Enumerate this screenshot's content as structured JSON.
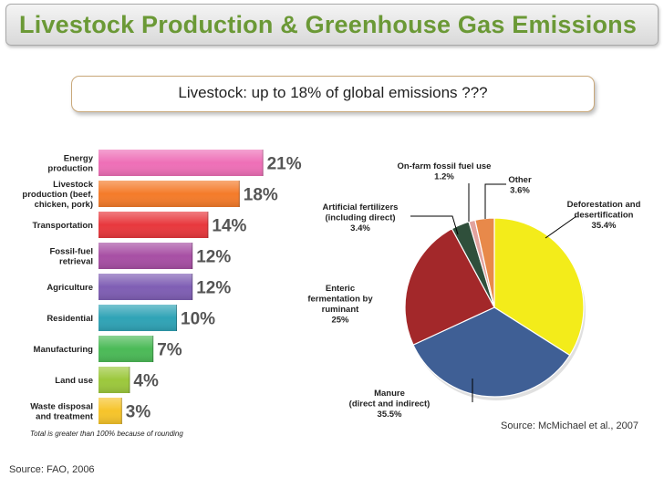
{
  "slide": {
    "title": "Livestock Production & Greenhouse Gas Emissions",
    "subtitle": "Livestock: up to 18% of global emissions ???",
    "source_left": "Source: FAO, 2006",
    "source_right": "Source: McMichael et al., 2007"
  },
  "chart_data": [
    {
      "type": "bar",
      "orientation": "horizontal",
      "categories": [
        [
          "Energy",
          "production"
        ],
        [
          "Livestock",
          "production (beef,",
          "chicken, pork)"
        ],
        [
          "Transportation"
        ],
        [
          "Fossil-fuel",
          "retrieval"
        ],
        [
          "Agriculture"
        ],
        [
          "Residential"
        ],
        [
          "Manufacturing"
        ],
        [
          "Land use"
        ],
        [
          "Waste disposal",
          "and treatment"
        ]
      ],
      "values": [
        21,
        18,
        14,
        12,
        12,
        10,
        7,
        4,
        3
      ],
      "value_labels": [
        "21%",
        "18%",
        "14%",
        "12%",
        "12%",
        "10%",
        "7%",
        "4%",
        "3%"
      ],
      "colors": [
        "#ee6fb7",
        "#f47b2a",
        "#e8383d",
        "#a74fa4",
        "#7f5eb4",
        "#2fa3b6",
        "#4bba57",
        "#9cc83c",
        "#f6c42a"
      ],
      "footnote": "Total is greater than 100% because of rounding"
    },
    {
      "type": "pie",
      "start_angle_deg": 0,
      "slices": [
        {
          "label": [
            "Deforestation and",
            "desertification",
            "35.4%"
          ],
          "value": 35.4,
          "color": "#f3ec1a"
        },
        {
          "label": [
            "Manure",
            "(direct and indirect)",
            "35.5%"
          ],
          "value": 35.5,
          "color": "#3f5f95"
        },
        {
          "label": [
            "Enteric",
            "fermentation by",
            "ruminant",
            "25%"
          ],
          "value": 25,
          "color": "#a3282a"
        },
        {
          "label": [
            "Artificial fertilizers",
            "(including direct)",
            "3.4%"
          ],
          "value": 3.4,
          "color": "#2f4f3b"
        },
        {
          "label": [
            "On-farm fossil fuel use",
            "1.2%"
          ],
          "value": 1.2,
          "color": "#e2a39e"
        },
        {
          "label": [
            "Other",
            "3.6%"
          ],
          "value": 3.6,
          "color": "#e8894a"
        }
      ]
    }
  ]
}
